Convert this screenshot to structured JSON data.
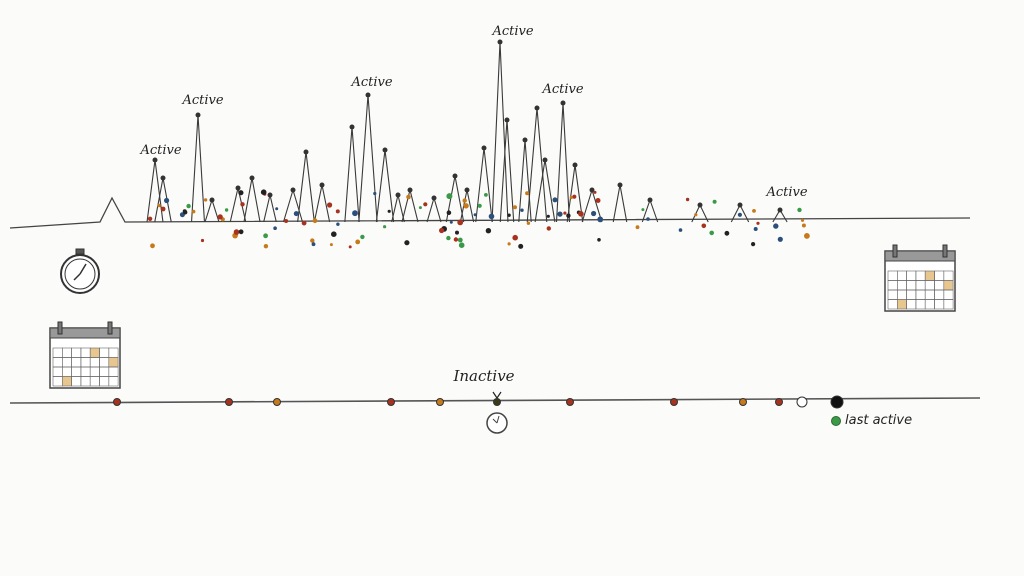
{
  "top_timeline": {
    "peak_labels": [
      "Active",
      "Active",
      "Active",
      "Active",
      "Active",
      "Active"
    ]
  },
  "bottom_timeline": {
    "marker_label": "Inactive",
    "legend_label": "last active",
    "dot_colors": [
      "#a8321e",
      "#a8321e",
      "#c67a1a",
      "#a8321e",
      "#c67a1a",
      "#3a3a1a",
      "#a8321e",
      "#a8321e",
      "#c67a1a",
      "#a8321e",
      "#ffffff",
      "#111111"
    ]
  },
  "colors": {
    "ink": "#333333",
    "red": "#a8321e",
    "orange": "#c67a1a",
    "green": "#3a9a48",
    "blue": "#2a4f7a"
  },
  "icons": [
    "stopwatch-icon",
    "calendar-icon",
    "calendar-icon",
    "clock-icon"
  ]
}
